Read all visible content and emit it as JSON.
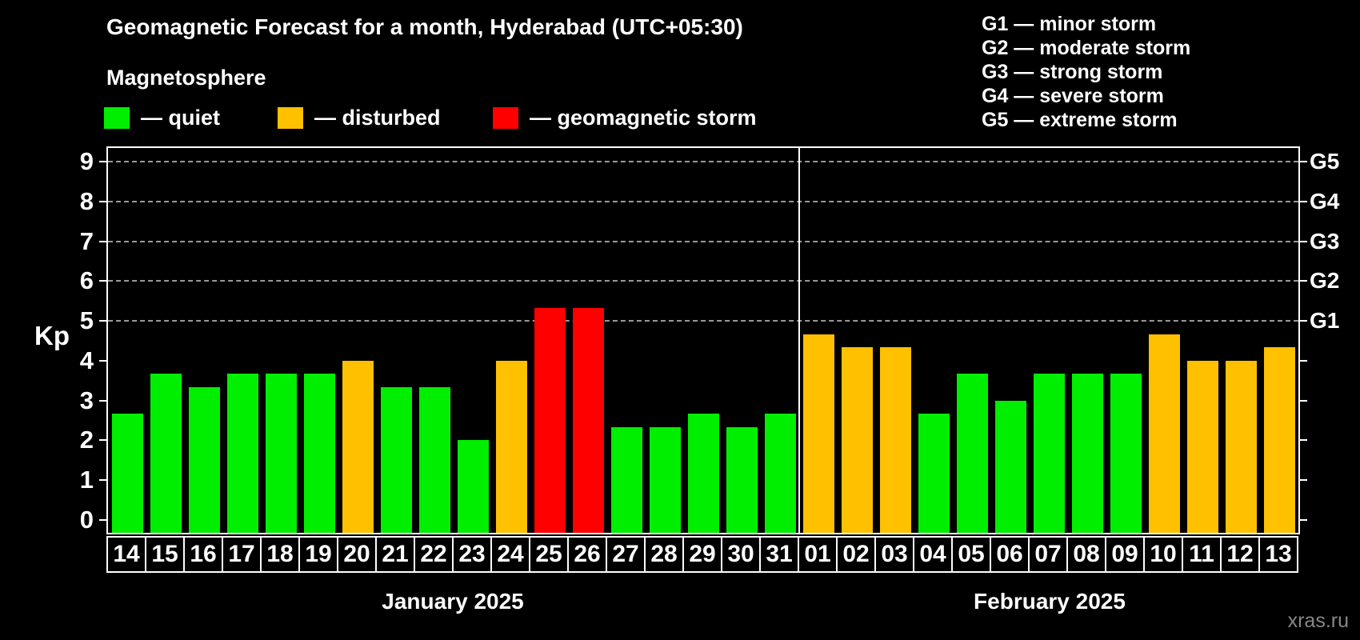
{
  "header": {
    "title": "Geomagnetic Forecast for a month, Hyderabad (UTC+05:30)",
    "subtitle": "Magnetosphere",
    "legend": [
      {
        "name": "quiet",
        "label": "— quiet",
        "color": "#00ee00"
      },
      {
        "name": "disturbed",
        "label": "— disturbed",
        "color": "#ffc000"
      },
      {
        "name": "storm",
        "label": "— geomagnetic storm",
        "color": "#ff0000"
      }
    ],
    "storm_scale": [
      {
        "label": "G1 — minor storm"
      },
      {
        "label": "G2 — moderate storm"
      },
      {
        "label": "G3 — strong storm"
      },
      {
        "label": "G4 — severe storm"
      },
      {
        "label": "G5 — extreme storm"
      }
    ]
  },
  "chart_data": {
    "type": "bar",
    "title": "Geomagnetic Forecast for a month, Hyderabad (UTC+05:30)",
    "ylabel": "Kp",
    "ylim": [
      -0.33,
      9.4
    ],
    "yticks": [
      0,
      1,
      2,
      3,
      4,
      5,
      6,
      7,
      8,
      9
    ],
    "gridlines_at": [
      5,
      6,
      7,
      8,
      9
    ],
    "grid": "dashed horizontal at storm levels only",
    "legend_position": "top-left",
    "right_axis_labels": [
      {
        "kp": 5,
        "label": "G1"
      },
      {
        "kp": 6,
        "label": "G2"
      },
      {
        "kp": 7,
        "label": "G3"
      },
      {
        "kp": 8,
        "label": "G4"
      },
      {
        "kp": 9,
        "label": "G5"
      }
    ],
    "status_colors": {
      "quiet": "#00ee00",
      "disturbed": "#ffc000",
      "storm": "#ff0000"
    },
    "groups": [
      {
        "label": "January 2025",
        "categories": [
          "14",
          "15",
          "16",
          "17",
          "18",
          "19",
          "20",
          "21",
          "22",
          "23",
          "24",
          "25",
          "26",
          "27",
          "28",
          "29",
          "30",
          "31"
        ],
        "values": [
          2.67,
          3.67,
          3.33,
          3.67,
          3.67,
          3.67,
          4.0,
          3.33,
          3.33,
          2.0,
          4.0,
          5.33,
          5.33,
          2.33,
          2.33,
          2.67,
          2.33,
          2.67
        ],
        "statuses": [
          "quiet",
          "quiet",
          "quiet",
          "quiet",
          "quiet",
          "quiet",
          "disturbed",
          "quiet",
          "quiet",
          "quiet",
          "disturbed",
          "storm",
          "storm",
          "quiet",
          "quiet",
          "quiet",
          "quiet",
          "quiet"
        ]
      },
      {
        "label": "February 2025",
        "categories": [
          "01",
          "02",
          "03",
          "04",
          "05",
          "06",
          "07",
          "08",
          "09",
          "10",
          "11",
          "12",
          "13"
        ],
        "values": [
          4.67,
          4.33,
          4.33,
          2.67,
          3.67,
          3.0,
          3.67,
          3.67,
          3.67,
          4.67,
          4.0,
          4.0,
          4.33
        ],
        "statuses": [
          "disturbed",
          "disturbed",
          "disturbed",
          "quiet",
          "quiet",
          "quiet",
          "quiet",
          "quiet",
          "quiet",
          "disturbed",
          "disturbed",
          "disturbed",
          "disturbed"
        ]
      }
    ]
  },
  "watermark": "xras.ru"
}
